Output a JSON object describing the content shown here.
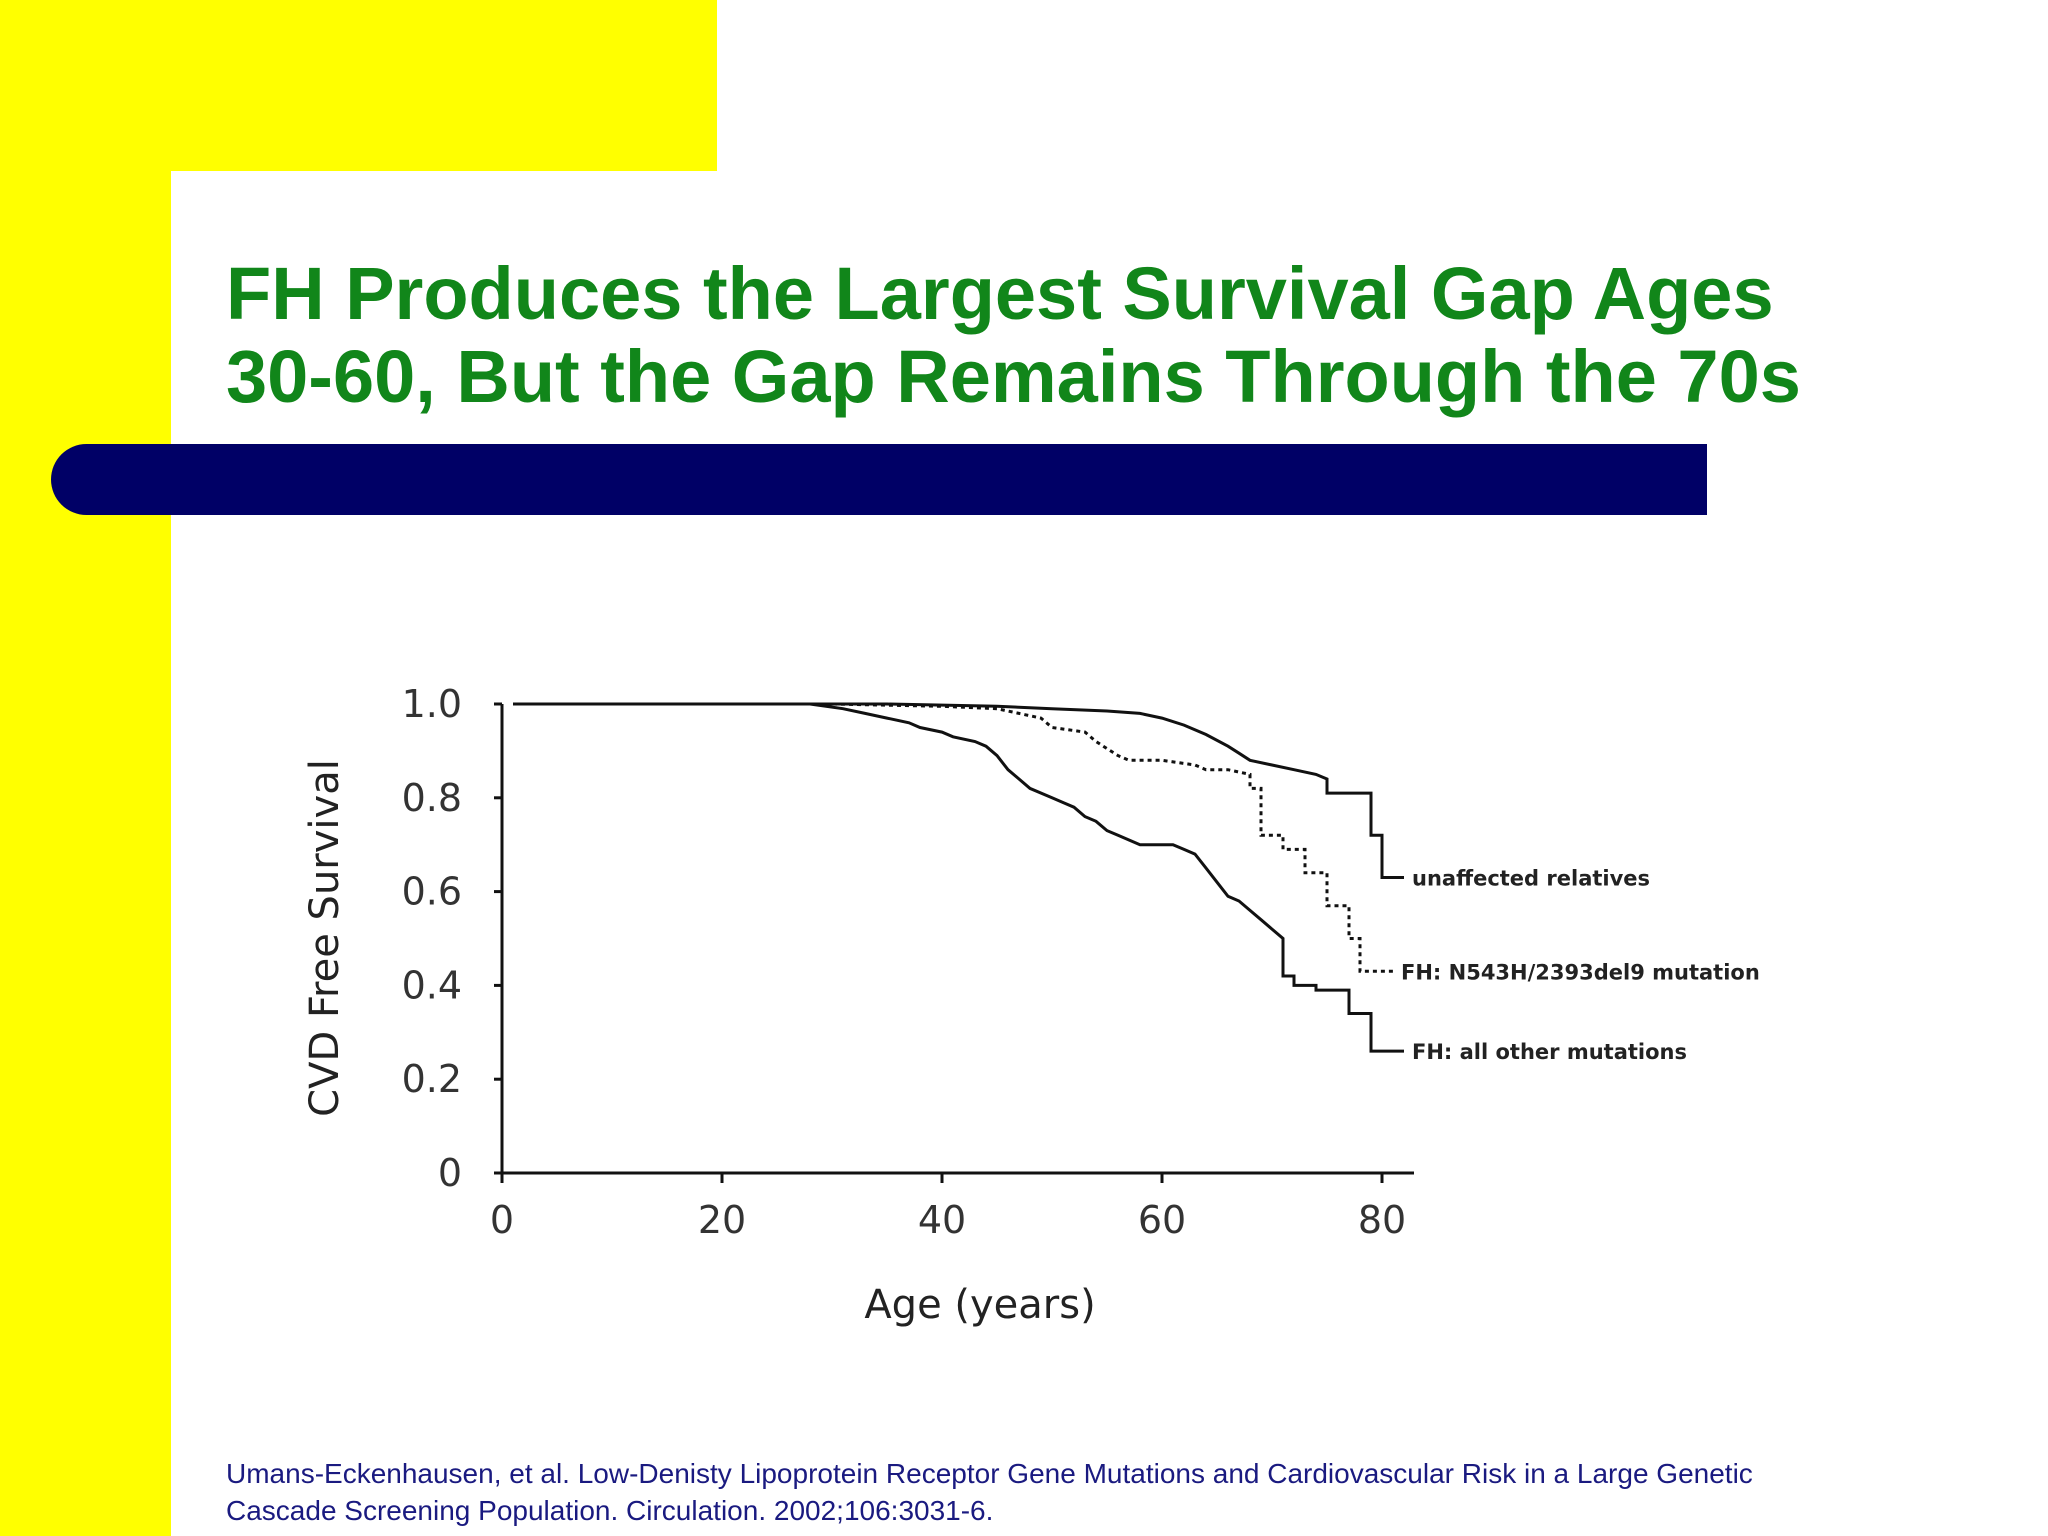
{
  "slide": {
    "title_line1": "FH Produces the Largest Survival Gap Ages",
    "title_line2": "30-60, But the Gap Remains Through the 70s",
    "citation_line1": "Umans-Eckenhausen, et al.  Low-Denisty Lipoprotein Receptor Gene Mutations and Cardiovascular Risk in a Large Genetic",
    "citation_line2": "Cascade Screening Population.  Circulation. 2002;106:3031-6.",
    "colors": {
      "background_accent": "#ffff00",
      "title": "#11861a",
      "bar": "#000066",
      "citation": "#1a1a80"
    }
  },
  "chart_data": {
    "type": "line",
    "xlabel": "Age (years)",
    "ylabel": "CVD Free Survival",
    "xlim": [
      0,
      82
    ],
    "ylim": [
      0,
      1.0
    ],
    "x_ticks": [
      "0",
      "20",
      "40",
      "60",
      "80"
    ],
    "y_ticks": [
      "0",
      "0.2",
      "0.4",
      "0.6",
      "0.8",
      "1.0"
    ],
    "grid": false,
    "legend": "labels at right end of each line",
    "series": [
      {
        "name": "unaffected relatives",
        "style": "solid",
        "points": [
          [
            1,
            1.0
          ],
          [
            20,
            1.0
          ],
          [
            35,
            1.0
          ],
          [
            45,
            0.995
          ],
          [
            50,
            0.99
          ],
          [
            55,
            0.985
          ],
          [
            58,
            0.98
          ],
          [
            60,
            0.97
          ],
          [
            62,
            0.955
          ],
          [
            64,
            0.935
          ],
          [
            66,
            0.91
          ],
          [
            67,
            0.895
          ],
          [
            68,
            0.88
          ],
          [
            70,
            0.87
          ],
          [
            72,
            0.86
          ],
          [
            74,
            0.85
          ],
          [
            75,
            0.84
          ],
          [
            75,
            0.81
          ],
          [
            79,
            0.81
          ],
          [
            79,
            0.72
          ],
          [
            80,
            0.72
          ],
          [
            80,
            0.63
          ],
          [
            82,
            0.63
          ]
        ]
      },
      {
        "name": "FH: N543H/2393del9 mutation",
        "style": "dotted",
        "points": [
          [
            1,
            1.0
          ],
          [
            30,
            1.0
          ],
          [
            40,
            0.995
          ],
          [
            45,
            0.99
          ],
          [
            47,
            0.98
          ],
          [
            49,
            0.97
          ],
          [
            50,
            0.95
          ],
          [
            53,
            0.94
          ],
          [
            54,
            0.92
          ],
          [
            55,
            0.905
          ],
          [
            56,
            0.89
          ],
          [
            57,
            0.88
          ],
          [
            60,
            0.88
          ],
          [
            63,
            0.87
          ],
          [
            64,
            0.86
          ],
          [
            66,
            0.86
          ],
          [
            68,
            0.85
          ],
          [
            68,
            0.82
          ],
          [
            69,
            0.82
          ],
          [
            69,
            0.72
          ],
          [
            71,
            0.72
          ],
          [
            71,
            0.69
          ],
          [
            73,
            0.69
          ],
          [
            73,
            0.64
          ],
          [
            75,
            0.64
          ],
          [
            75,
            0.57
          ],
          [
            77,
            0.57
          ],
          [
            77,
            0.5
          ],
          [
            78,
            0.5
          ],
          [
            78,
            0.43
          ],
          [
            81,
            0.43
          ]
        ]
      },
      {
        "name": "FH: all other mutations",
        "style": "solid",
        "points": [
          [
            1,
            1.0
          ],
          [
            28,
            1.0
          ],
          [
            31,
            0.99
          ],
          [
            33,
            0.98
          ],
          [
            35,
            0.97
          ],
          [
            37,
            0.96
          ],
          [
            38,
            0.95
          ],
          [
            40,
            0.94
          ],
          [
            41,
            0.93
          ],
          [
            43,
            0.92
          ],
          [
            44,
            0.91
          ],
          [
            45,
            0.89
          ],
          [
            46,
            0.86
          ],
          [
            47,
            0.84
          ],
          [
            48,
            0.82
          ],
          [
            50,
            0.8
          ],
          [
            51,
            0.79
          ],
          [
            52,
            0.78
          ],
          [
            53,
            0.76
          ],
          [
            54,
            0.75
          ],
          [
            55,
            0.73
          ],
          [
            56,
            0.72
          ],
          [
            57,
            0.71
          ],
          [
            58,
            0.7
          ],
          [
            61,
            0.7
          ],
          [
            62,
            0.69
          ],
          [
            63,
            0.68
          ],
          [
            64,
            0.65
          ],
          [
            65,
            0.62
          ],
          [
            66,
            0.59
          ],
          [
            67,
            0.58
          ],
          [
            68,
            0.56
          ],
          [
            69,
            0.54
          ],
          [
            70,
            0.52
          ],
          [
            71,
            0.5
          ],
          [
            71,
            0.42
          ],
          [
            72,
            0.42
          ],
          [
            72,
            0.4
          ],
          [
            74,
            0.4
          ],
          [
            74,
            0.39
          ],
          [
            77,
            0.39
          ],
          [
            77,
            0.34
          ],
          [
            79,
            0.34
          ],
          [
            79,
            0.26
          ],
          [
            82,
            0.26
          ]
        ]
      }
    ]
  }
}
